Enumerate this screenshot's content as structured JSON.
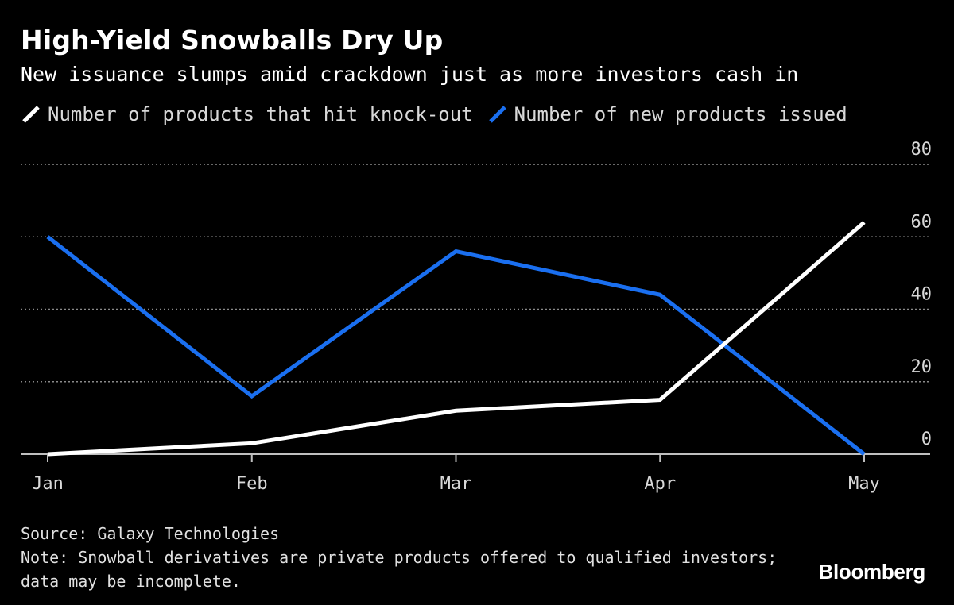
{
  "header": {
    "title": "High-Yield Snowballs Dry Up",
    "subtitle": "New issuance slumps amid crackdown just as more investors cash in"
  },
  "legend": {
    "items": [
      {
        "label": "Number of products that hit knock-out",
        "color": "#ffffff"
      },
      {
        "label": "Number of new products issued",
        "color": "#1a6ff0"
      }
    ]
  },
  "footer": {
    "source": "Source: Galaxy Technologies",
    "note_line1": "Note: Snowball derivatives are private products offered to qualified investors;",
    "note_line2": "data may be incomplete.",
    "brand": "Bloomberg"
  },
  "chart_data": {
    "type": "line",
    "title": "High-Yield Snowballs Dry Up",
    "subtitle": "New issuance slumps amid crackdown just as more investors cash in",
    "categories": [
      "Jan",
      "Feb",
      "Mar",
      "Apr",
      "May"
    ],
    "series": [
      {
        "name": "Number of products that hit knock-out",
        "color": "#ffffff",
        "values": [
          0,
          3,
          12,
          15,
          64
        ]
      },
      {
        "name": "Number of new products issued",
        "color": "#1a6ff0",
        "values": [
          60,
          16,
          56,
          44,
          0
        ]
      }
    ],
    "ylim": [
      0,
      80
    ],
    "yticks": [
      0,
      20,
      40,
      60,
      80
    ],
    "ytick_side": "right",
    "grid": "horizontal dotted",
    "legend_position": "top-left"
  }
}
